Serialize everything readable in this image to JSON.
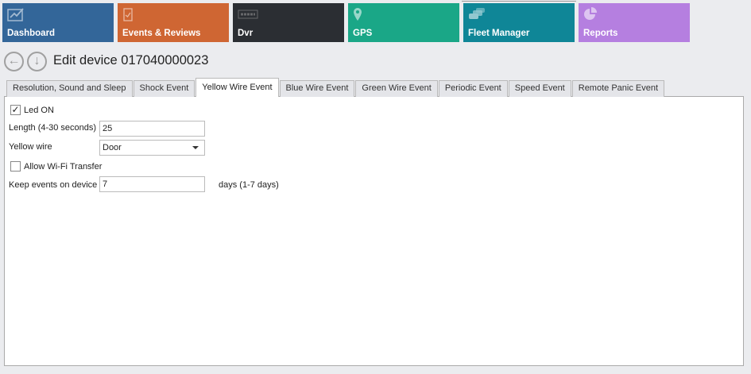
{
  "nav": [
    {
      "label": "Dashboard",
      "icon": "chart-line-icon",
      "color": "#336699"
    },
    {
      "label": "Events & Reviews",
      "icon": "clipboard-check-icon",
      "color": "#cf6633"
    },
    {
      "label": "Dvr",
      "icon": "dvr-logo-icon",
      "color": "#2b2e33"
    },
    {
      "label": "GPS",
      "icon": "map-pin-icon",
      "color": "#1aa787"
    },
    {
      "label": "Fleet Manager",
      "icon": "cars-icon",
      "color": "#0f8697"
    },
    {
      "label": "Reports",
      "icon": "pie-chart-icon",
      "color": "#b57fe0"
    }
  ],
  "header": {
    "title": "Edit device 017040000023",
    "back_icon": "arrow-left-circle-icon",
    "down_icon": "arrow-down-circle-icon"
  },
  "tabs": [
    "Resolution, Sound and Sleep",
    "Shock Event",
    "Yellow Wire Event",
    "Blue Wire Event",
    "Green Wire Event",
    "Periodic Event",
    "Speed Event",
    "Remote Panic Event"
  ],
  "active_tab": "Yellow Wire Event",
  "form": {
    "led_on": {
      "label": "Led ON",
      "checked": true
    },
    "length": {
      "label": "Length (4-30 seconds)",
      "value": "25"
    },
    "yellow_wire": {
      "label": "Yellow wire",
      "value": "Door"
    },
    "wifi": {
      "label": "Allow Wi-Fi Transfer",
      "checked": false
    },
    "keep": {
      "label": "Keep events on device",
      "value": "7",
      "suffix": "days (1-7 days)"
    }
  }
}
